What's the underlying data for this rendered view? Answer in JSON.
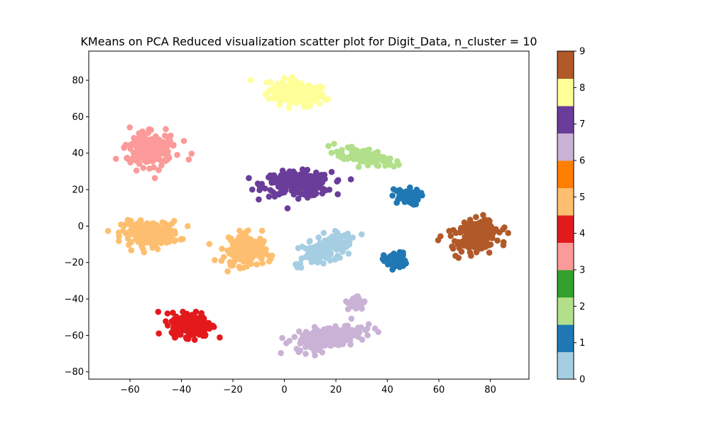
{
  "chart_data": {
    "type": "scatter",
    "title": "KMeans on PCA Reduced visualization scatter plot for Digit_Data, n_cluster = 10",
    "xlabel": "",
    "ylabel": "",
    "xlim": [
      -76,
      95
    ],
    "ylim": [
      -84,
      96
    ],
    "xticks": [
      -60,
      -40,
      -20,
      0,
      20,
      40,
      60,
      80
    ],
    "yticks": [
      -80,
      -60,
      -40,
      -20,
      0,
      20,
      40,
      60,
      80
    ],
    "grid": false,
    "colorbar": {
      "ticks": [
        0,
        1,
        2,
        3,
        4,
        5,
        6,
        7,
        8,
        9
      ],
      "colors": [
        "#a6cee3",
        "#1f78b4",
        "#b2df8a",
        "#33a02c",
        "#fb9a99",
        "#e31a1c",
        "#fdbf6f",
        "#ff7f00",
        "#cab2d6",
        "#6a3d9a",
        "#ffff99",
        "#b15928"
      ]
    },
    "clusters": [
      {
        "label": 8,
        "color": "#ffff99",
        "center": [
          5,
          73
        ],
        "spread": [
          10,
          6
        ],
        "count": 190,
        "angle": -10
      },
      {
        "label": 3,
        "color": "#fb9a99",
        "center": [
          -52,
          42
        ],
        "spread": [
          9,
          8
        ],
        "count": 190,
        "angle": 25
      },
      {
        "label": 7,
        "color": "#6a3d9a",
        "center": [
          5,
          23
        ],
        "spread": [
          12,
          6
        ],
        "count": 230,
        "angle": 0
      },
      {
        "label": 2,
        "color": "#b2df8a",
        "center": [
          32,
          38
        ],
        "spread": [
          10,
          4
        ],
        "count": 120,
        "angle": -20
      },
      {
        "label": 1,
        "color": "#1f78b4",
        "center": [
          47,
          16
        ],
        "spread": [
          5,
          4
        ],
        "count": 70,
        "angle": 0
      },
      {
        "label": 1,
        "color": "#1f78b4",
        "center": [
          43,
          -19
        ],
        "spread": [
          4,
          4
        ],
        "count": 55,
        "angle": 0
      },
      {
        "label": 5,
        "color": "#fdbf6f",
        "center": [
          -52,
          -4
        ],
        "spread": [
          10,
          6
        ],
        "count": 210,
        "angle": 0
      },
      {
        "label": 5,
        "color": "#fdbf6f",
        "center": [
          -15,
          -13
        ],
        "spread": [
          7,
          8
        ],
        "count": 160,
        "angle": -10
      },
      {
        "label": 0,
        "color": "#a6cee3",
        "center": [
          16,
          -13
        ],
        "spread": [
          10,
          5
        ],
        "count": 170,
        "angle": 35
      },
      {
        "label": 9,
        "color": "#b15928",
        "center": [
          74,
          -6
        ],
        "spread": [
          8,
          8
        ],
        "count": 200,
        "angle": 30
      },
      {
        "label": 4,
        "color": "#e31a1c",
        "center": [
          -36,
          -54
        ],
        "spread": [
          7,
          6
        ],
        "count": 220,
        "angle": 0
      },
      {
        "label": 6,
        "color": "#cab2d6",
        "center": [
          17,
          -61
        ],
        "spread": [
          13,
          5
        ],
        "count": 210,
        "angle": 15
      },
      {
        "label": 6,
        "color": "#cab2d6",
        "center": [
          28,
          -42
        ],
        "spread": [
          3,
          4
        ],
        "count": 25,
        "angle": 0
      }
    ]
  }
}
